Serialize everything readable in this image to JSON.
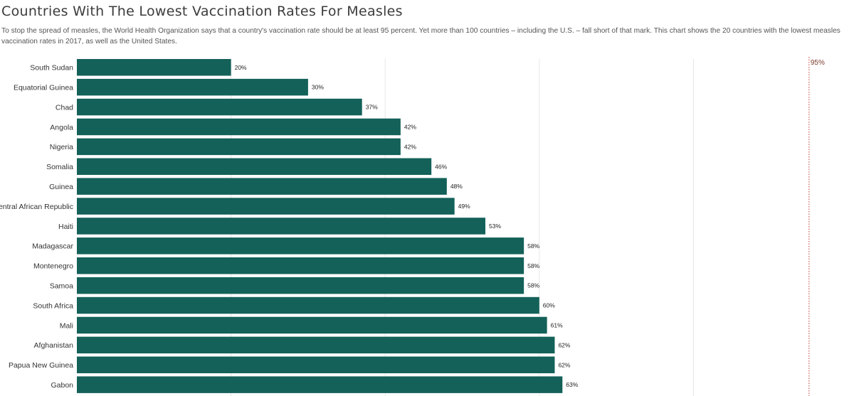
{
  "title": "Countries With The Lowest Vaccination Rates For Measles",
  "subtitle": "To stop the spread of measles, the World Health Organization says that a country's vaccination rate should be at least 95 percent. Yet more than 100 countries – including the U.S. – fall short of that mark. This chart shows the 20 countries with the lowest measles vaccination rates in 2017, as well as the United States.",
  "chart_data": {
    "type": "bar",
    "orientation": "horizontal",
    "title": "Countries With The Lowest Vaccination Rates For Measles",
    "xlabel": "",
    "ylabel": "",
    "xlim": [
      0,
      95
    ],
    "grid": true,
    "bar_color": "#136159",
    "reference_line": {
      "value": 95,
      "label": "95%",
      "color": "#c0392b"
    },
    "categories": [
      "South Sudan",
      "Equatorial Guinea",
      "Chad",
      "Angola",
      "Nigeria",
      "Somalia",
      "Guinea",
      "Central African Republic",
      "Haiti",
      "Madagascar",
      "Montenegro",
      "Samoa",
      "South Africa",
      "Mali",
      "Afghanistan",
      "Papua New Guinea",
      "Gabon"
    ],
    "values": [
      20,
      30,
      37,
      42,
      42,
      46,
      48,
      49,
      53,
      58,
      58,
      58,
      60,
      61,
      62,
      62,
      63
    ],
    "value_labels": [
      "20%",
      "30%",
      "37%",
      "42%",
      "42%",
      "46%",
      "48%",
      "49%",
      "53%",
      "58%",
      "58%",
      "58%",
      "60%",
      "61%",
      "62%",
      "62%",
      "63%"
    ]
  }
}
